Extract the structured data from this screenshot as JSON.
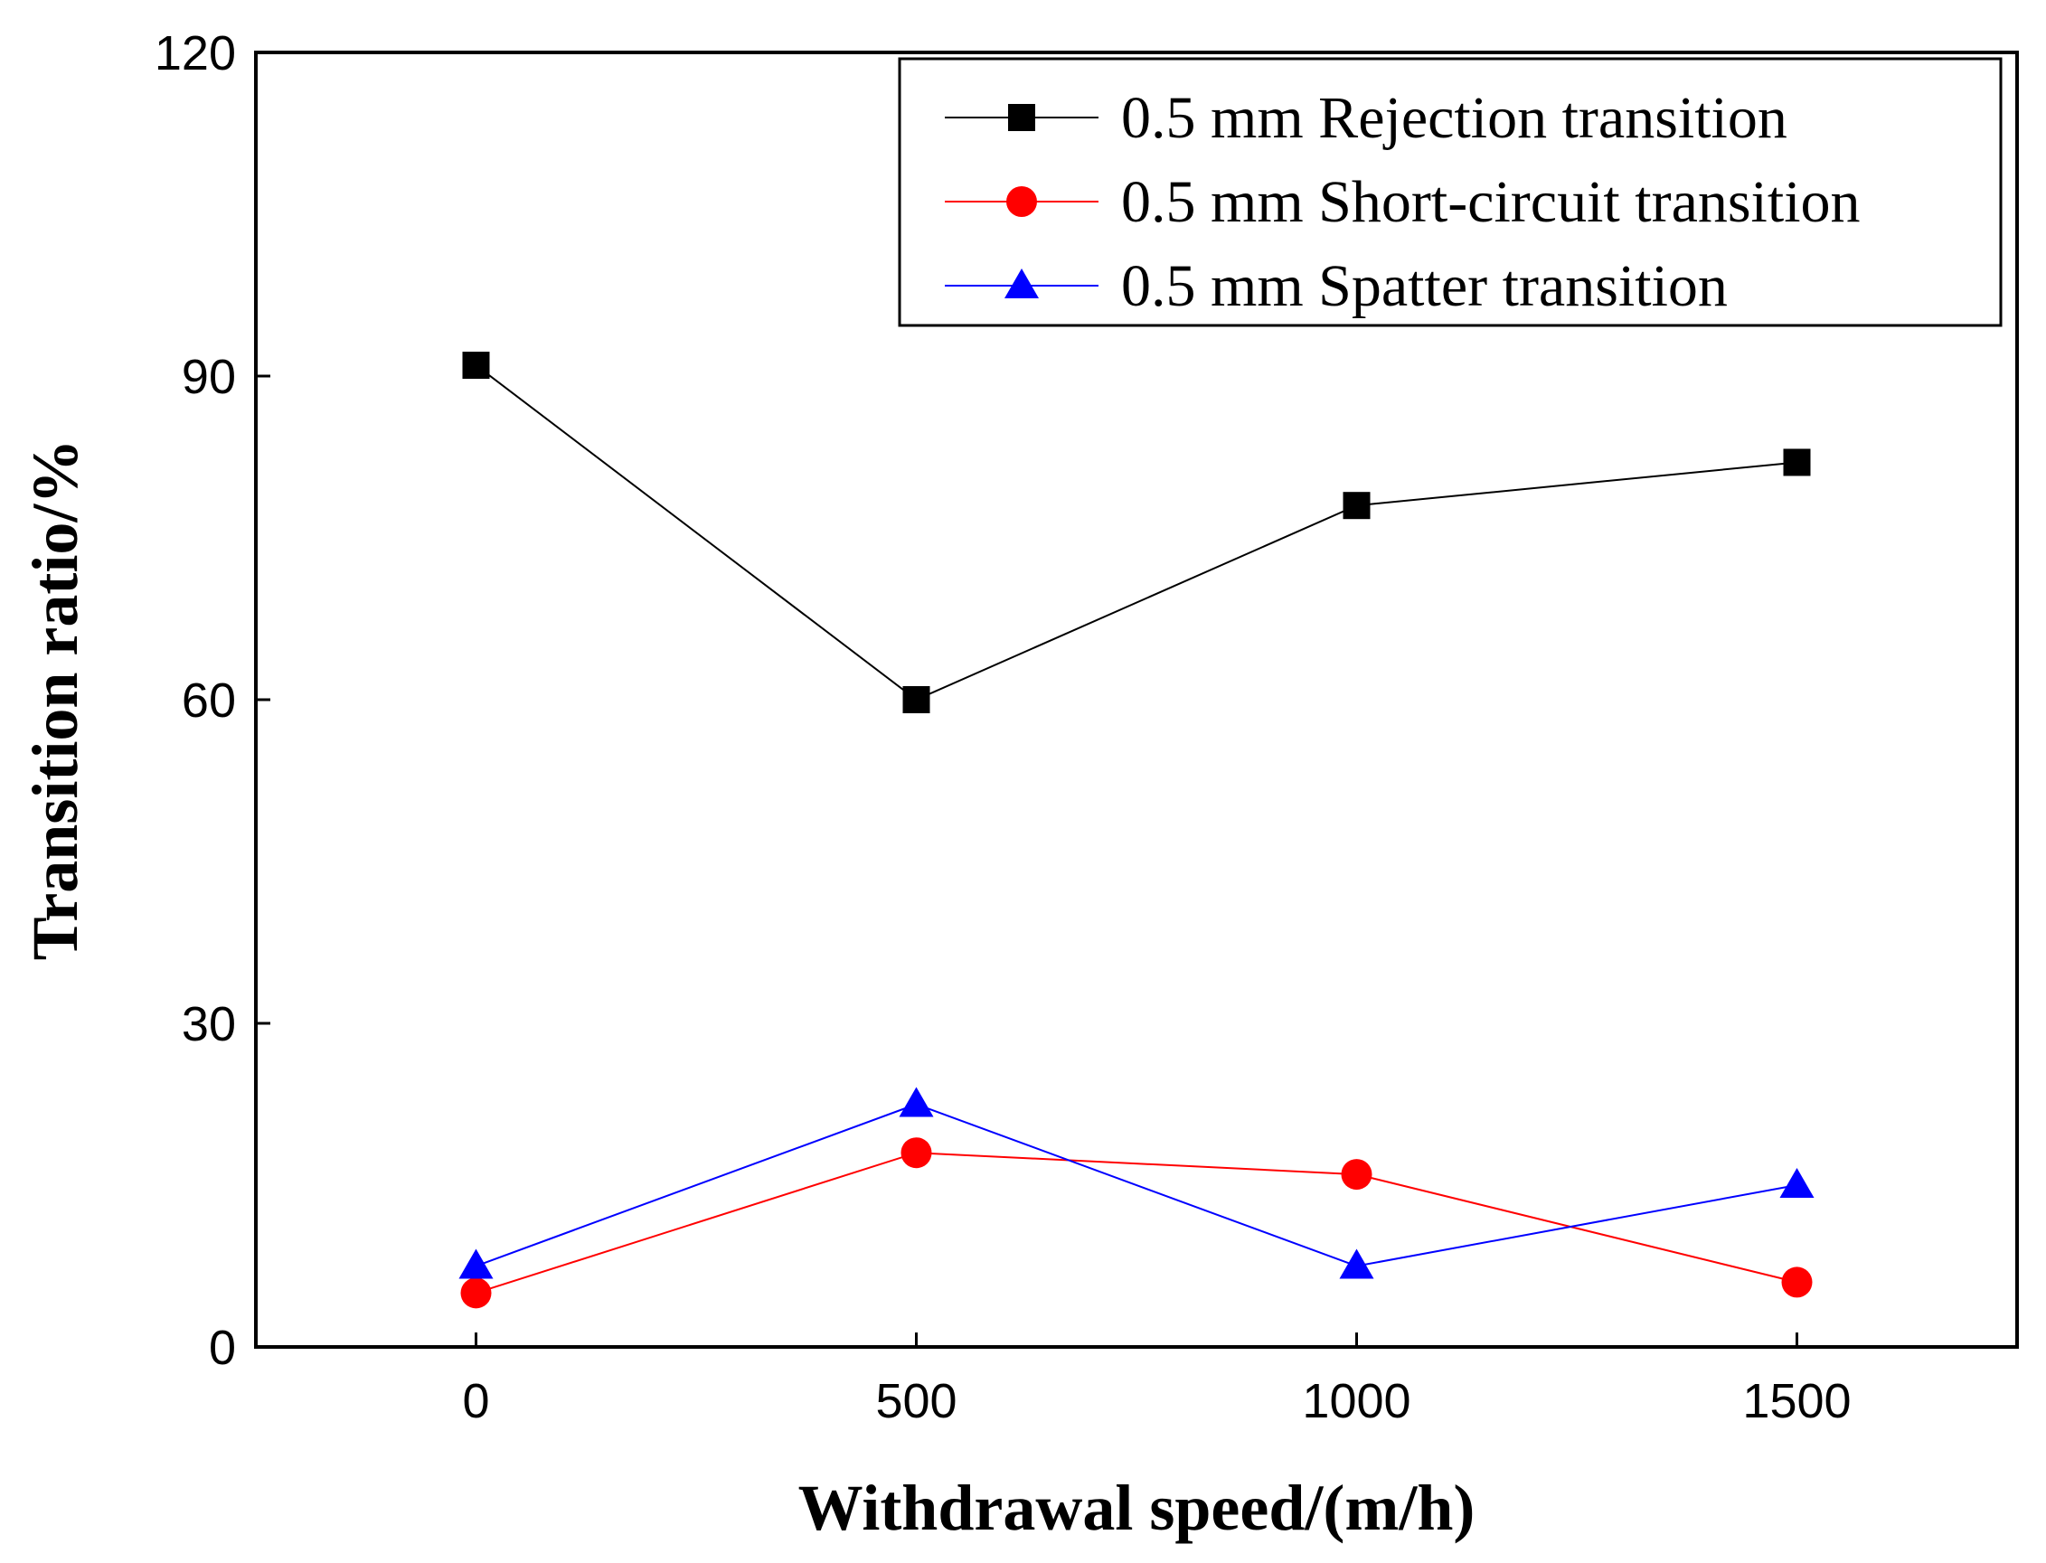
{
  "chart_data": {
    "type": "line",
    "title": "",
    "xlabel": "Withdrawal speed/(m/h)",
    "ylabel": "Transition ratio/%",
    "x": [
      0,
      500,
      1000,
      1500
    ],
    "xlim": [
      -250,
      1750
    ],
    "ylim": [
      0,
      120
    ],
    "xticks": [
      "0",
      "500",
      "1000",
      "1500"
    ],
    "yticks": [
      "0",
      "30",
      "60",
      "90",
      "120"
    ],
    "grid": false,
    "legend_position": "top-right",
    "series": [
      {
        "name": "0.5 mm Rejection transition",
        "values": [
          91,
          60,
          78,
          82
        ],
        "color": "#000000",
        "marker": "square"
      },
      {
        "name": "0.5 mm Short-circuit transition",
        "values": [
          5,
          18,
          16,
          6
        ],
        "color": "#ff0000",
        "marker": "circle"
      },
      {
        "name": "0.5 mm Spatter transition",
        "values": [
          7.5,
          22.5,
          7.5,
          15
        ],
        "color": "#0000ff",
        "marker": "triangle"
      }
    ]
  }
}
